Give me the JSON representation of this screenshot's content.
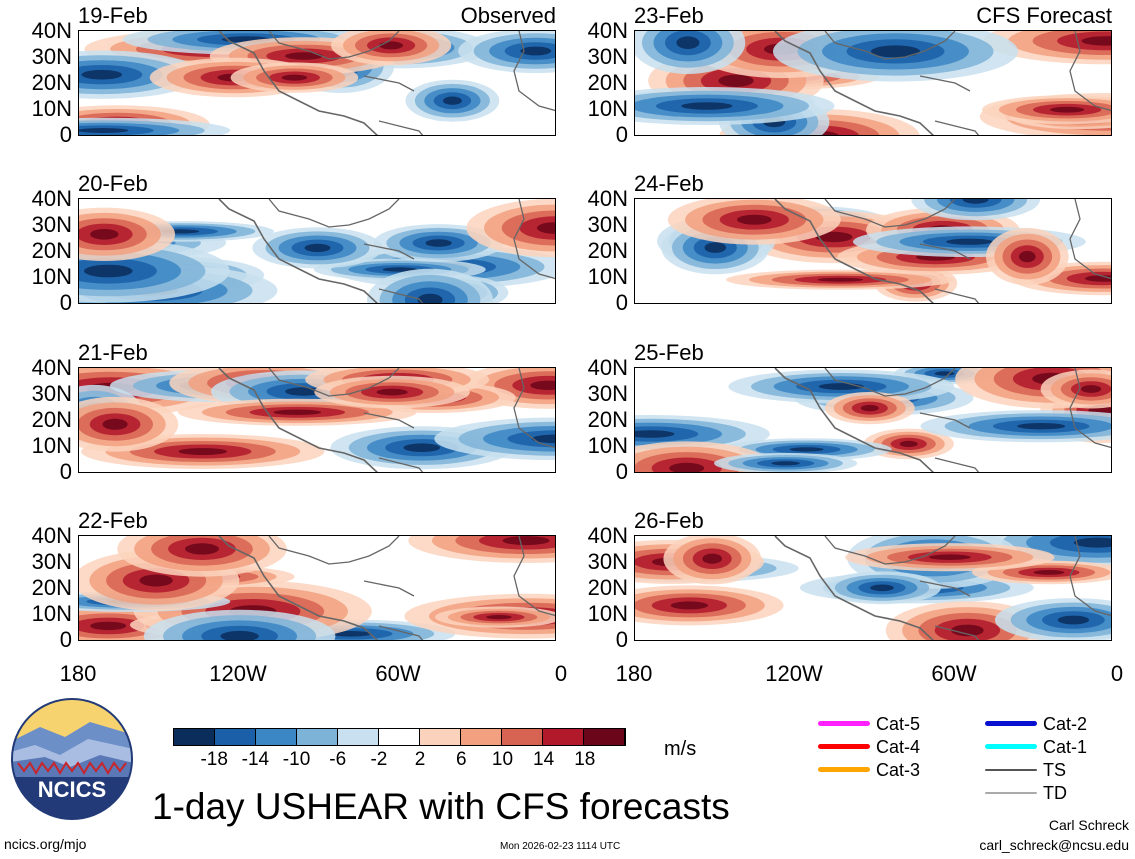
{
  "columns": [
    {
      "header": "Observed",
      "dates": [
        "19-Feb",
        "20-Feb",
        "21-Feb",
        "22-Feb"
      ]
    },
    {
      "header": "CFS Forecast",
      "dates": [
        "23-Feb",
        "24-Feb",
        "25-Feb",
        "26-Feb"
      ]
    }
  ],
  "lat_labels": [
    "40N",
    "30N",
    "20N",
    "10N",
    "0"
  ],
  "lon_labels": [
    "180",
    "120W",
    "60W",
    "0"
  ],
  "colorbar": {
    "colors": [
      "#0b2d5b",
      "#1a5fa8",
      "#3b86c4",
      "#7eb3d8",
      "#c8e0ef",
      "#ffffff",
      "#fbd3bd",
      "#f2a07f",
      "#d76352",
      "#b2192b",
      "#6b0519"
    ],
    "tick_labels": [
      "-18",
      "-14",
      "-10",
      "-6",
      "-2",
      "2",
      "6",
      "10",
      "14",
      "18"
    ],
    "units": "m/s"
  },
  "legend": [
    {
      "label": "Cat-5",
      "color": "#ff22ff"
    },
    {
      "label": "Cat-4",
      "color": "#ff0000"
    },
    {
      "label": "Cat-3",
      "color": "#ffa500"
    },
    {
      "label": "Cat-2",
      "color": "#0a10d0"
    },
    {
      "label": "Cat-1",
      "color": "#00ffff"
    },
    {
      "label": "TS",
      "color": "#555555"
    },
    {
      "label": "TD",
      "color": "#aaaaaa"
    }
  ],
  "logo_text": "NCICS",
  "main_title": "1-day USHEAR with CFS forecasts",
  "author": "Carl Schreck",
  "email": "carl_schreck@ncsu.edu",
  "site": "ncics.org/mjo",
  "timestamp": "Mon 2026-02-23 1114 UTC"
}
